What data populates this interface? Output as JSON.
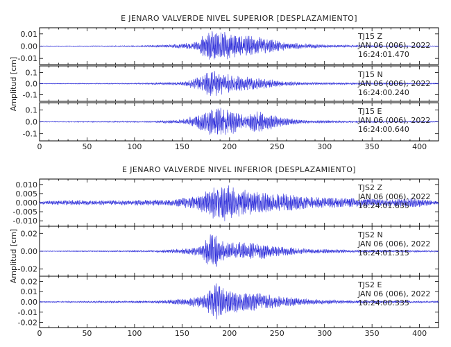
{
  "chart_data": [
    {
      "type": "line",
      "title": "E JENARO VALVERDE NIVEL SUPERIOR [DESPLAZAMIENTO]",
      "ylabel": "Amplitud [cm]",
      "xlim": [
        0,
        420
      ],
      "xticks": [
        "0",
        "50",
        "100",
        "150",
        "200",
        "250",
        "300",
        "350",
        "400"
      ],
      "grid": false,
      "line_color": "#2b2bd9",
      "panels": [
        {
          "station": "TJ15",
          "component": "Z",
          "date": "JAN 06 (006), 2022",
          "time": "16:24:01.470",
          "ylim": [
            -0.015,
            0.015
          ],
          "yticks": [
            "0.01",
            "0.00",
            "-0.01"
          ],
          "ytick_values": [
            0.01,
            0.0,
            -0.01
          ],
          "envelope": [
            [
              0,
              0.0003
            ],
            [
              40,
              0.0003
            ],
            [
              100,
              0.0005
            ],
            [
              130,
              0.001
            ],
            [
              150,
              0.002
            ],
            [
              165,
              0.004
            ],
            [
              175,
              0.011
            ],
            [
              185,
              0.013
            ],
            [
              195,
              0.012
            ],
            [
              210,
              0.009
            ],
            [
              230,
              0.009
            ],
            [
              245,
              0.006
            ],
            [
              260,
              0.003
            ],
            [
              290,
              0.0015
            ],
            [
              330,
              0.0008
            ],
            [
              420,
              0.0003
            ]
          ]
        },
        {
          "station": "TJ15",
          "component": "N",
          "date": "JAN 06 (006), 2022",
          "time": "16:24:00.240",
          "ylim": [
            -0.16,
            0.16
          ],
          "yticks": [
            "0.1",
            "0.0",
            "-0.1"
          ],
          "ytick_values": [
            0.1,
            0.0,
            -0.1
          ],
          "envelope": [
            [
              0,
              0.003
            ],
            [
              100,
              0.005
            ],
            [
              150,
              0.015
            ],
            [
              170,
              0.07
            ],
            [
              180,
              0.13
            ],
            [
              195,
              0.1
            ],
            [
              210,
              0.07
            ],
            [
              230,
              0.06
            ],
            [
              245,
              0.04
            ],
            [
              260,
              0.02
            ],
            [
              300,
              0.01
            ],
            [
              420,
              0.004
            ]
          ]
        },
        {
          "station": "TJ15",
          "component": "E",
          "date": "JAN 06 (006), 2022",
          "time": "16:24:00.640",
          "ylim": [
            -0.16,
            0.16
          ],
          "yticks": [
            "0.1",
            "0.0",
            "-0.1"
          ],
          "ytick_values": [
            0.1,
            0.0,
            -0.1
          ],
          "envelope": [
            [
              0,
              0.003
            ],
            [
              120,
              0.006
            ],
            [
              150,
              0.02
            ],
            [
              165,
              0.06
            ],
            [
              180,
              0.12
            ],
            [
              195,
              0.13
            ],
            [
              210,
              0.08
            ],
            [
              218,
              0.05
            ],
            [
              228,
              0.1
            ],
            [
              240,
              0.08
            ],
            [
              255,
              0.04
            ],
            [
              280,
              0.015
            ],
            [
              320,
              0.008
            ],
            [
              420,
              0.004
            ]
          ]
        }
      ]
    },
    {
      "type": "line",
      "title": "E JENARO VALVERDE NIVEL INFERIOR [DESPLAZAMIENTO]",
      "ylabel": "Amplitud [cm]",
      "xlim": [
        0,
        420
      ],
      "xticks": [
        "0",
        "50",
        "100",
        "150",
        "200",
        "250",
        "300",
        "350",
        "400"
      ],
      "grid": false,
      "line_color": "#2b2bd9",
      "panels": [
        {
          "station": "TJS2",
          "component": "Z",
          "date": "JAN 06 (006), 2022",
          "time": "16:24:01.635",
          "ylim": [
            -0.013,
            0.013
          ],
          "yticks": [
            "0.010",
            "0.005",
            "0.000",
            "-0.005",
            "-0.010"
          ],
          "ytick_values": [
            0.01,
            0.005,
            0.0,
            -0.005,
            -0.01
          ],
          "envelope": [
            [
              0,
              0.0008
            ],
            [
              30,
              0.0015
            ],
            [
              60,
              0.0012
            ],
            [
              100,
              0.0015
            ],
            [
              140,
              0.002
            ],
            [
              165,
              0.004
            ],
            [
              180,
              0.008
            ],
            [
              190,
              0.011
            ],
            [
              205,
              0.009
            ],
            [
              230,
              0.006
            ],
            [
              260,
              0.005
            ],
            [
              300,
              0.003
            ],
            [
              340,
              0.0025
            ],
            [
              370,
              0.002
            ],
            [
              395,
              0.003
            ],
            [
              410,
              0.0015
            ],
            [
              420,
              0.001
            ]
          ]
        },
        {
          "station": "TJS2",
          "component": "N",
          "date": "JAN 06 (006), 2022",
          "time": "16:24:01.315",
          "ylim": [
            -0.028,
            0.028
          ],
          "yticks": [
            "0.02",
            "0.00",
            "-0.02"
          ],
          "ytick_values": [
            0.02,
            0.0,
            -0.02
          ],
          "envelope": [
            [
              0,
              0.0004
            ],
            [
              120,
              0.001
            ],
            [
              150,
              0.003
            ],
            [
              170,
              0.006
            ],
            [
              183,
              0.025
            ],
            [
              190,
              0.012
            ],
            [
              210,
              0.011
            ],
            [
              230,
              0.01
            ],
            [
              250,
              0.006
            ],
            [
              280,
              0.003
            ],
            [
              330,
              0.0015
            ],
            [
              420,
              0.0008
            ]
          ]
        },
        {
          "station": "TJS2",
          "component": "E",
          "date": "JAN 06 (006), 2022",
          "time": "16:24:00.335",
          "ylim": [
            -0.025,
            0.025
          ],
          "yticks": [
            "0.02",
            "0.01",
            "0.00",
            "-0.01",
            "-0.02"
          ],
          "ytick_values": [
            0.02,
            0.01,
            0.0,
            -0.01,
            -0.02
          ],
          "envelope": [
            [
              0,
              0.0005
            ],
            [
              120,
              0.0012
            ],
            [
              150,
              0.003
            ],
            [
              170,
              0.006
            ],
            [
              185,
              0.02
            ],
            [
              195,
              0.014
            ],
            [
              210,
              0.01
            ],
            [
              230,
              0.009
            ],
            [
              250,
              0.006
            ],
            [
              280,
              0.003
            ],
            [
              330,
              0.0015
            ],
            [
              420,
              0.0008
            ]
          ]
        }
      ]
    }
  ]
}
